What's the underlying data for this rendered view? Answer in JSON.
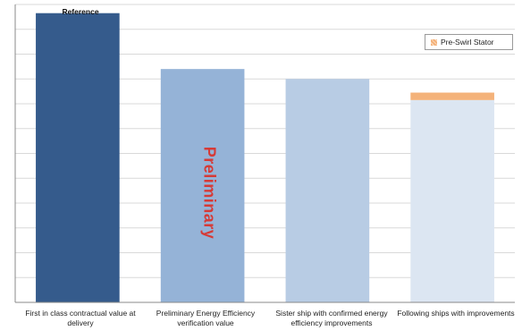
{
  "chart_data": {
    "type": "bar",
    "categories": [
      "First in class contractual value at delivery",
      "Preliminary Energy Efficiency verification value",
      "Sister ship with confirmed energy efficiency improvements",
      "Following ships with improvements"
    ],
    "series": [
      {
        "values": [
          11.65,
          9.4,
          9.0,
          8.15
        ]
      },
      {
        "name": "Pre-Swirl Stator",
        "values": [
          0,
          0,
          0,
          0.3
        ]
      }
    ],
    "ylim": [
      0,
      12
    ],
    "grid": true,
    "legend": "top-right",
    "bar_colors": [
      "#355b8c",
      "#95b3d7",
      "#b8cce4",
      "#dce6f2"
    ],
    "stack_color": "#f4b27a",
    "annotations": {
      "reference": "Reference",
      "preliminary": "Preliminary"
    }
  }
}
